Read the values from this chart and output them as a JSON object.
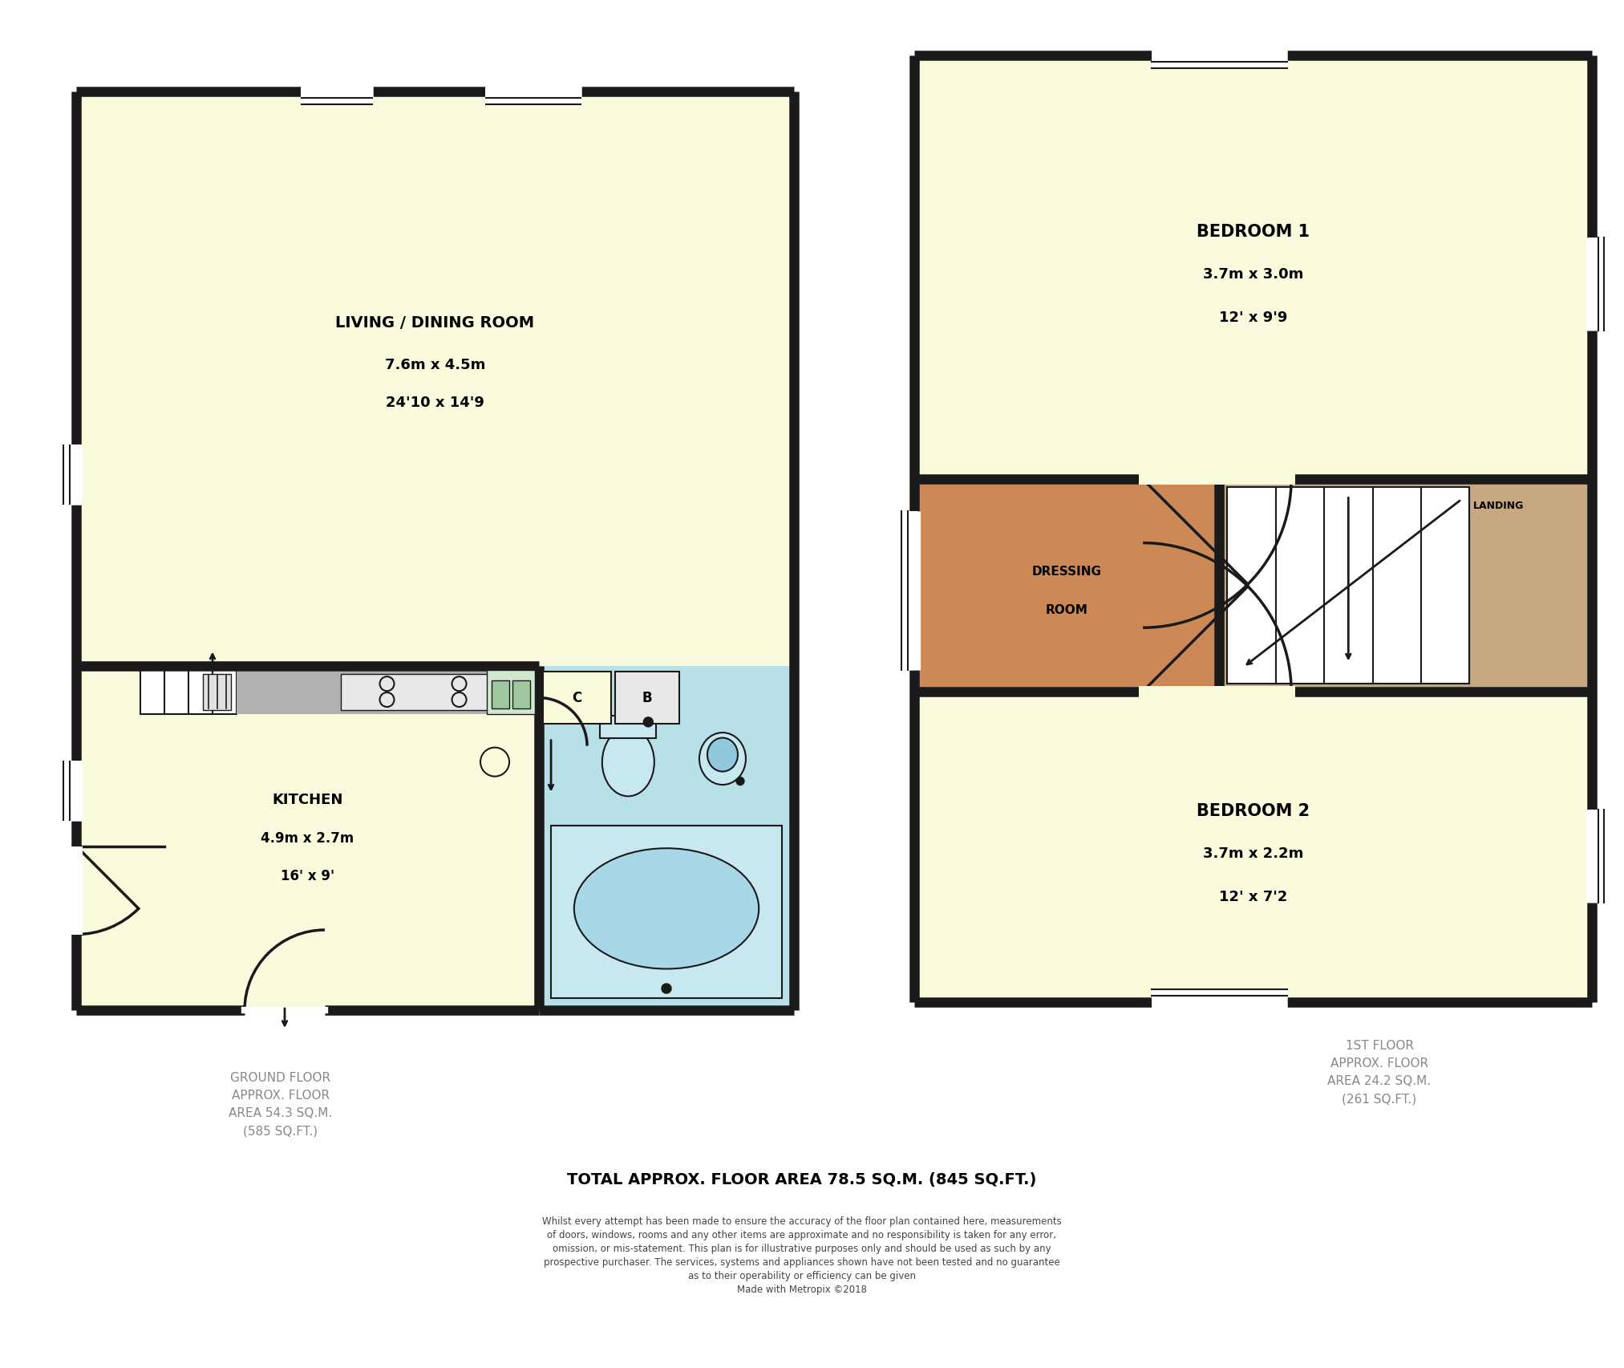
{
  "bg_color": "#ffffff",
  "wall_color": "#1a1a1a",
  "room_yellow": "#fafadc",
  "room_blue": "#b8e0e8",
  "room_orange": "#cc8855",
  "room_gray": "#b0b0b0",
  "room_tan": "#c8a882",
  "room_white": "#ffffff",
  "ground_floor_label": "GROUND FLOOR\nAPPROX. FLOOR\nAREA 54.3 SQ.M.\n(585 SQ.FT.)",
  "first_floor_label": "1ST FLOOR\nAPPROX. FLOOR\nAREA 24.2 SQ.M.\n(261 SQ.FT.)",
  "total_label": "TOTAL APPROX. FLOOR AREA 78.5 SQ.M. (845 SQ.FT.)",
  "disclaimer": "Whilst every attempt has been made to ensure the accuracy of the floor plan contained here, measurements\nof doors, windows, rooms and any other items are approximate and no responsibility is taken for any error,\nomission, or mis-statement. This plan is for illustrative purposes only and should be used as such by any\nprospective purchaser. The services, systems and appliances shown have not been tested and no guarantee\nas to their operability or efficiency can be given\nMade with Metropix ©2018"
}
